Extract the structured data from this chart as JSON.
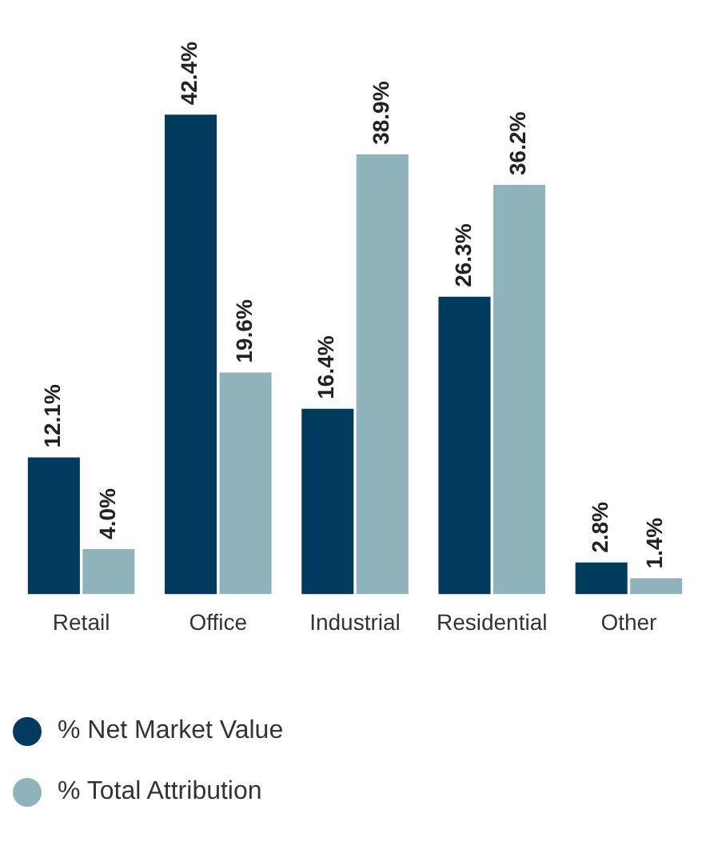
{
  "chart_data": {
    "type": "bar",
    "categories": [
      "Retail",
      "Office",
      "Industrial",
      "Residential",
      "Other"
    ],
    "series": [
      {
        "name": "% Net Market Value",
        "color": "#003a5c",
        "values": [
          12.1,
          42.4,
          16.4,
          26.3,
          2.8
        ],
        "value_labels": [
          "12.1%",
          "42.4%",
          "16.4%",
          "26.3%",
          "2.8%"
        ]
      },
      {
        "name": "% Total Attribution",
        "color": "#8fb3bb",
        "values": [
          4.0,
          19.6,
          38.9,
          36.2,
          1.4
        ],
        "value_labels": [
          "4.0%",
          "19.6%",
          "38.9%",
          "36.2%",
          "1.4%"
        ]
      }
    ],
    "legend": "bottom",
    "grid": false
  }
}
